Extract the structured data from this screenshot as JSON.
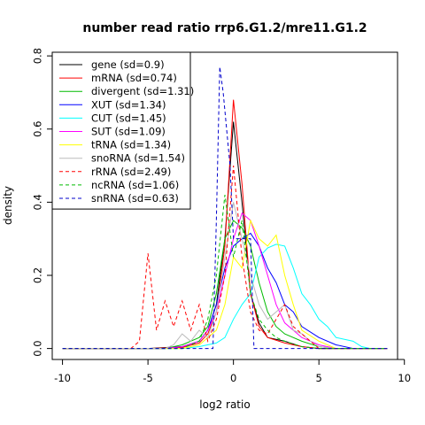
{
  "chart_data": {
    "type": "line",
    "title": "number read ratio rrp6.G1.2/mre11.G1.2",
    "xlabel": "log2 ratio",
    "ylabel": "density",
    "xlim": [
      -10.6,
      9.6
    ],
    "ylim": [
      -0.03,
      0.81
    ],
    "xticks": [
      -10,
      -5,
      0,
      5,
      10
    ],
    "yticks": [
      0.0,
      0.2,
      0.4,
      0.6,
      0.8
    ],
    "xtick_labels": [
      "-10",
      "-5",
      "0",
      "5",
      "10"
    ],
    "ytick_labels": [
      "0.0",
      "0.2",
      "0.4",
      "0.6",
      "0.8"
    ],
    "grid": false,
    "legend_position": "top-left",
    "series": [
      {
        "name": "gene (sd=0.9)",
        "color": "#000000",
        "dash": "solid",
        "x": [
          -10,
          -5,
          -3,
          -2,
          -1.5,
          -1,
          -0.5,
          0,
          0.5,
          1,
          1.5,
          2,
          3,
          4,
          5,
          6,
          7,
          8,
          9
        ],
        "y": [
          0,
          0,
          0.005,
          0.02,
          0.05,
          0.12,
          0.3,
          0.62,
          0.4,
          0.15,
          0.07,
          0.03,
          0.02,
          0.005,
          0,
          0,
          0,
          0,
          0
        ]
      },
      {
        "name": "mRNA (sd=0.74)",
        "color": "#ff0000",
        "dash": "solid",
        "x": [
          -10,
          -5,
          -3,
          -2,
          -1.5,
          -1,
          -0.5,
          0,
          0.5,
          1,
          1.5,
          2,
          3,
          4,
          5,
          6,
          7,
          8,
          9
        ],
        "y": [
          0,
          0,
          0.003,
          0.015,
          0.04,
          0.1,
          0.28,
          0.68,
          0.45,
          0.15,
          0.06,
          0.03,
          0.015,
          0.005,
          0,
          0,
          0,
          0,
          0
        ]
      },
      {
        "name": "divergent (sd=1.31)",
        "color": "#00bb00",
        "dash": "solid",
        "x": [
          -10,
          -4,
          -3,
          -2,
          -1.5,
          -1,
          -0.5,
          0,
          0.5,
          1,
          1.5,
          2,
          2.5,
          3,
          4,
          5,
          6,
          7,
          8,
          9
        ],
        "y": [
          0,
          0,
          0.01,
          0.03,
          0.06,
          0.15,
          0.3,
          0.35,
          0.33,
          0.28,
          0.18,
          0.1,
          0.06,
          0.04,
          0.02,
          0.005,
          0,
          0,
          0,
          0
        ]
      },
      {
        "name": "XUT (sd=1.34)",
        "color": "#0000ff",
        "dash": "solid",
        "x": [
          -10,
          -4,
          -3,
          -2,
          -1.5,
          -1,
          -0.5,
          0,
          0.5,
          1,
          1.5,
          2,
          2.5,
          3,
          3.5,
          4,
          5,
          6,
          7,
          8,
          9
        ],
        "y": [
          0,
          0,
          0.005,
          0.02,
          0.05,
          0.12,
          0.22,
          0.28,
          0.3,
          0.315,
          0.28,
          0.22,
          0.18,
          0.12,
          0.1,
          0.06,
          0.03,
          0.01,
          0,
          0,
          0
        ]
      },
      {
        "name": "CUT (sd=1.45)",
        "color": "#00ffff",
        "dash": "solid",
        "x": [
          -10,
          -3,
          -2,
          -1,
          -0.5,
          0,
          0.5,
          1,
          1.5,
          2,
          2.5,
          3,
          3.5,
          4,
          4.5,
          5,
          5.5,
          6,
          7,
          7.5,
          8,
          9
        ],
        "y": [
          0,
          0,
          0.005,
          0.015,
          0.03,
          0.08,
          0.12,
          0.15,
          0.25,
          0.275,
          0.285,
          0.28,
          0.22,
          0.15,
          0.12,
          0.08,
          0.06,
          0.03,
          0.02,
          0.005,
          0,
          0
        ]
      },
      {
        "name": "SUT (sd=1.09)",
        "color": "#ff00ff",
        "dash": "solid",
        "x": [
          -10,
          -4,
          -3,
          -2,
          -1.5,
          -1,
          -0.5,
          0,
          0.5,
          1,
          1.5,
          2,
          2.5,
          3,
          4,
          5,
          6,
          7,
          8,
          9
        ],
        "y": [
          0,
          0,
          0.005,
          0.02,
          0.05,
          0.1,
          0.2,
          0.3,
          0.37,
          0.35,
          0.28,
          0.2,
          0.12,
          0.07,
          0.03,
          0.01,
          0,
          0,
          0,
          0
        ]
      },
      {
        "name": "tRNA (sd=1.34)",
        "color": "#ffff00",
        "dash": "solid",
        "x": [
          -10,
          -3,
          -2,
          -1,
          -0.5,
          0,
          0.5,
          1,
          1.5,
          2,
          2.5,
          3,
          3.5,
          4,
          5,
          6,
          7,
          8,
          9
        ],
        "y": [
          0,
          0,
          0.01,
          0.05,
          0.12,
          0.25,
          0.22,
          0.35,
          0.3,
          0.28,
          0.31,
          0.2,
          0.12,
          0.05,
          0.02,
          0,
          0,
          0,
          0
        ]
      },
      {
        "name": "snoRNA (sd=1.54)",
        "color": "#bbbbbb",
        "dash": "solid",
        "x": [
          -10,
          -4,
          -3.5,
          -3,
          -2.5,
          -2,
          -1.5,
          -1,
          -0.5,
          0,
          0.5,
          1,
          1.5,
          2,
          2.5,
          3,
          3.5,
          4,
          4.5,
          5,
          6,
          7,
          8,
          9
        ],
        "y": [
          0,
          0,
          0.01,
          0.04,
          0.02,
          0.05,
          0.03,
          0.1,
          0.25,
          0.4,
          0.3,
          0.2,
          0.12,
          0.08,
          0.1,
          0.12,
          0.05,
          0.04,
          0.02,
          0.005,
          0,
          0,
          0,
          0
        ]
      },
      {
        "name": "rRNA (sd=2.49)",
        "color": "#ff0000",
        "dash": "dashed",
        "x": [
          -10,
          -6,
          -5.5,
          -5,
          -4.5,
          -4,
          -3.5,
          -3,
          -2.5,
          -2,
          -1.5,
          -1,
          -0.5,
          0,
          0.5,
          1,
          1.5,
          2,
          2.5,
          3,
          3.5,
          4,
          5,
          6,
          7,
          8,
          9
        ],
        "y": [
          0,
          0,
          0.02,
          0.26,
          0.05,
          0.13,
          0.06,
          0.13,
          0.05,
          0.12,
          0.02,
          0.08,
          0.2,
          0.5,
          0.25,
          0.1,
          0.05,
          0.04,
          0.08,
          0.12,
          0.06,
          0.04,
          0,
          0,
          0,
          0,
          0
        ]
      },
      {
        "name": "ncRNA (sd=1.06)",
        "color": "#00bb00",
        "dash": "dashed",
        "x": [
          -10,
          -3,
          -2,
          -1.5,
          -1,
          -0.5,
          0,
          0.5,
          1,
          1.5,
          2,
          2.5,
          3,
          4,
          5,
          6,
          7,
          8,
          9
        ],
        "y": [
          0,
          0,
          0.02,
          0.08,
          0.2,
          0.42,
          0.25,
          0.35,
          0.15,
          0.08,
          0.05,
          0.03,
          0.02,
          0.005,
          0,
          0,
          0,
          0,
          0
        ]
      },
      {
        "name": "snRNA (sd=0.63)",
        "color": "#0000cc",
        "dash": "dashed",
        "x": [
          -10,
          -1.5,
          -1.2,
          -1,
          -0.8,
          -0.6,
          -0.4,
          -0.2,
          0,
          0.2,
          0.4,
          0.6,
          0.8,
          1,
          1.2,
          9
        ],
        "y": [
          0,
          0,
          0,
          0.35,
          0.77,
          0.7,
          0.6,
          0.5,
          0.3,
          0.3,
          0.3,
          0.3,
          0.3,
          0.3,
          0,
          0
        ]
      }
    ]
  }
}
